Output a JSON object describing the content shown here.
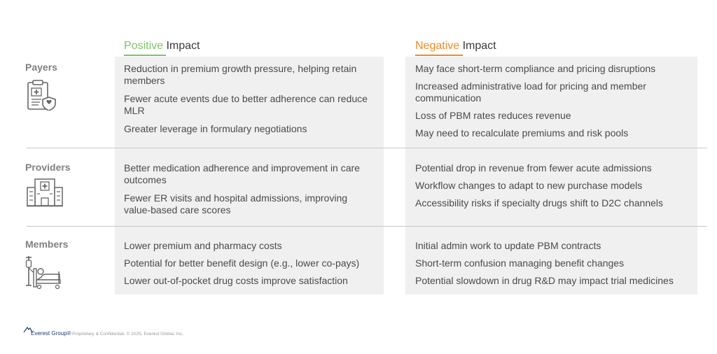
{
  "columns": {
    "positive": {
      "accent_word": "Positive",
      "rest": " Impact",
      "accent_color": "#7dc36b"
    },
    "negative": {
      "accent_word": "Negative",
      "rest": " Impact",
      "accent_color": "#f08a24"
    }
  },
  "rows": [
    {
      "label": "Payers",
      "icon": "clipboard-shield-icon",
      "positive": [
        "Reduction in premium growth pressure, helping retain members",
        "Fewer acute events due to better adherence can reduce MLR",
        "Greater leverage in formulary negotiations"
      ],
      "negative": [
        "May face short-term compliance and pricing disruptions",
        "Increased administrative load for pricing and member communication",
        "Loss of PBM rates reduces revenue",
        "May need to recalculate premiums and risk pools"
      ]
    },
    {
      "label": "Providers",
      "icon": "hospital-building-icon",
      "positive": [
        "Better medication adherence and improvement in care outcomes",
        "Fewer ER visits and hospital admissions, improving value-based care scores"
      ],
      "negative": [
        "Potential drop in revenue from fewer acute admissions",
        "Workflow changes to adapt to new purchase models",
        "Accessibility risks if specialty drugs shift to D2C channels"
      ]
    },
    {
      "label": "Members",
      "icon": "patient-bed-icon",
      "positive": [
        "Lower premium and pharmacy costs",
        "Potential for better benefit design (e.g., lower co-pays)",
        "Lower out-of-pocket drug costs improve satisfaction"
      ],
      "negative": [
        "Initial admin work to update PBM contracts",
        "Short-term confusion managing benefit changes",
        "Potential slowdown in drug R&D may impact trial medicines"
      ]
    }
  ],
  "footer": {
    "logo": "Everest Group®",
    "text": "Proprietary & Confidential. © 2025, Everest Global, Inc."
  }
}
